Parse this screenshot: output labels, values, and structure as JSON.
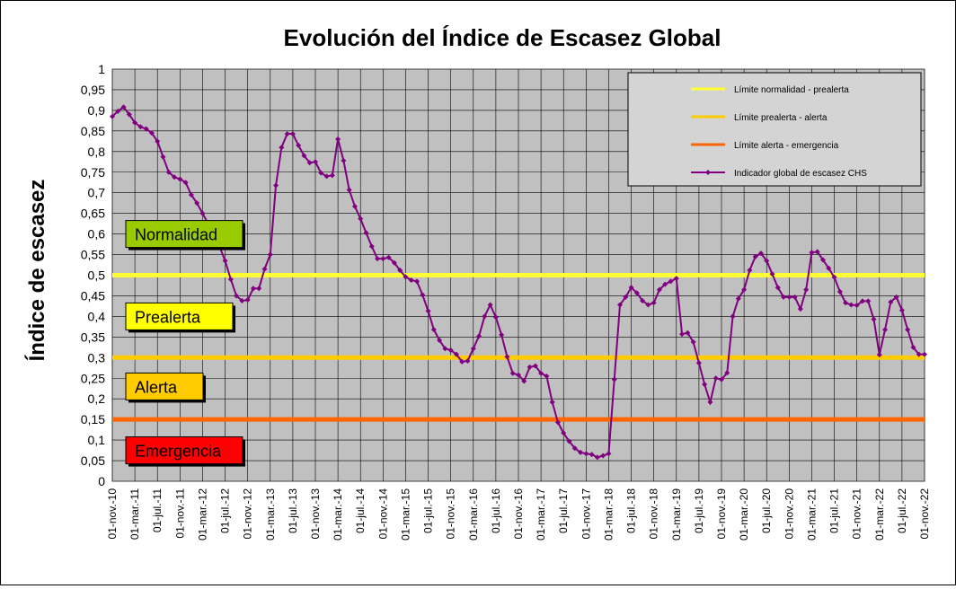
{
  "chart_data": {
    "type": "line",
    "title": "Evolución del Índice de Escasez Global",
    "xlabel": "",
    "ylabel": "Índice de escasez",
    "ylim": [
      0,
      1
    ],
    "y_ticks": [
      "0",
      "0,05",
      "0,1",
      "0,15",
      "0,2",
      "0,25",
      "0,3",
      "0,35",
      "0,4",
      "0,45",
      "0,5",
      "0,55",
      "0,6",
      "0,65",
      "0,7",
      "0,75",
      "0,8",
      "0,85",
      "0,9",
      "0,95",
      "1"
    ],
    "x_ticks": [
      "01-nov.-10",
      "01-mar.-11",
      "01-jul.-11",
      "01-nov.-11",
      "01-mar.-12",
      "01-jul.-12",
      "01-nov.-12",
      "01-mar.-13",
      "01-jul.-13",
      "01-nov.-13",
      "01-mar.-14",
      "01-jul.-14",
      "01-nov.-14",
      "01-mar.-15",
      "01-jul.-15",
      "01-nov.-15",
      "01-mar.-16",
      "01-jul.-16",
      "01-nov.-16",
      "01-mar.-17",
      "01-jul.-17",
      "01-nov.-17",
      "01-mar.-18",
      "01-jul.-18",
      "01-nov.-18",
      "01-mar.-19",
      "01-jul.-19",
      "01-nov.-19",
      "01-mar.-20",
      "01-jul.-20",
      "01-nov.-20",
      "01-mar.-21",
      "01-jul.-21",
      "01-nov.-21",
      "01-mar.-22",
      "01-jul.-22",
      "01-nov.-22"
    ],
    "grid": true,
    "background": "#c0c0c0",
    "legend_position": "top-right",
    "thresholds": [
      {
        "name": "Límite normalidad - prealerta",
        "value": 0.5,
        "color": "#ffff33"
      },
      {
        "name": "Límite prealerta - alerta",
        "value": 0.3,
        "color": "#ffcc00"
      },
      {
        "name": "Límite alerta - emergencia",
        "value": 0.15,
        "color": "#ff6600"
      }
    ],
    "series": [
      {
        "name": "Indicador global de escasez CHS",
        "color": "#800080",
        "start": "01-nov.-10",
        "values": [
          0.885,
          0.898,
          0.908,
          0.89,
          0.87,
          0.86,
          0.855,
          0.845,
          0.825,
          0.787,
          0.75,
          0.738,
          0.733,
          0.725,
          0.695,
          0.675,
          0.65,
          0.625,
          0.6,
          0.57,
          0.535,
          0.49,
          0.45,
          0.438,
          0.44,
          0.468,
          0.468,
          0.515,
          0.55,
          0.718,
          0.81,
          0.843,
          0.843,
          0.815,
          0.79,
          0.773,
          0.775,
          0.748,
          0.74,
          0.742,
          0.83,
          0.778,
          0.707,
          0.667,
          0.637,
          0.603,
          0.57,
          0.54,
          0.54,
          0.543,
          0.53,
          0.512,
          0.496,
          0.488,
          0.485,
          0.452,
          0.413,
          0.368,
          0.342,
          0.322,
          0.318,
          0.308,
          0.29,
          0.292,
          0.322,
          0.352,
          0.4,
          0.428,
          0.398,
          0.355,
          0.302,
          0.262,
          0.258,
          0.243,
          0.277,
          0.28,
          0.262,
          0.255,
          0.192,
          0.143,
          0.117,
          0.097,
          0.08,
          0.07,
          0.067,
          0.065,
          0.058,
          0.062,
          0.067,
          0.247,
          0.428,
          0.447,
          0.47,
          0.457,
          0.438,
          0.428,
          0.433,
          0.465,
          0.478,
          0.485,
          0.492,
          0.357,
          0.36,
          0.338,
          0.287,
          0.235,
          0.192,
          0.25,
          0.247,
          0.263,
          0.4,
          0.443,
          0.465,
          0.512,
          0.545,
          0.553,
          0.535,
          0.503,
          0.47,
          0.447,
          0.447,
          0.447,
          0.418,
          0.465,
          0.555,
          0.557,
          0.537,
          0.517,
          0.495,
          0.46,
          0.433,
          0.428,
          0.427,
          0.437,
          0.437,
          0.393,
          0.307,
          0.368,
          0.435,
          0.447,
          0.415,
          0.368,
          0.325,
          0.308,
          0.308
        ]
      }
    ]
  },
  "zone_labels": [
    {
      "text": "Normalidad",
      "color": "#99cc00",
      "y_center": 0.6
    },
    {
      "text": "Prealerta",
      "color": "#ffff00",
      "y_center": 0.4
    },
    {
      "text": "Alerta",
      "color": "#ffcc00",
      "y_center": 0.23
    },
    {
      "text": "Emergencia",
      "color": "#ff0000",
      "y_center": 0.075
    }
  ]
}
